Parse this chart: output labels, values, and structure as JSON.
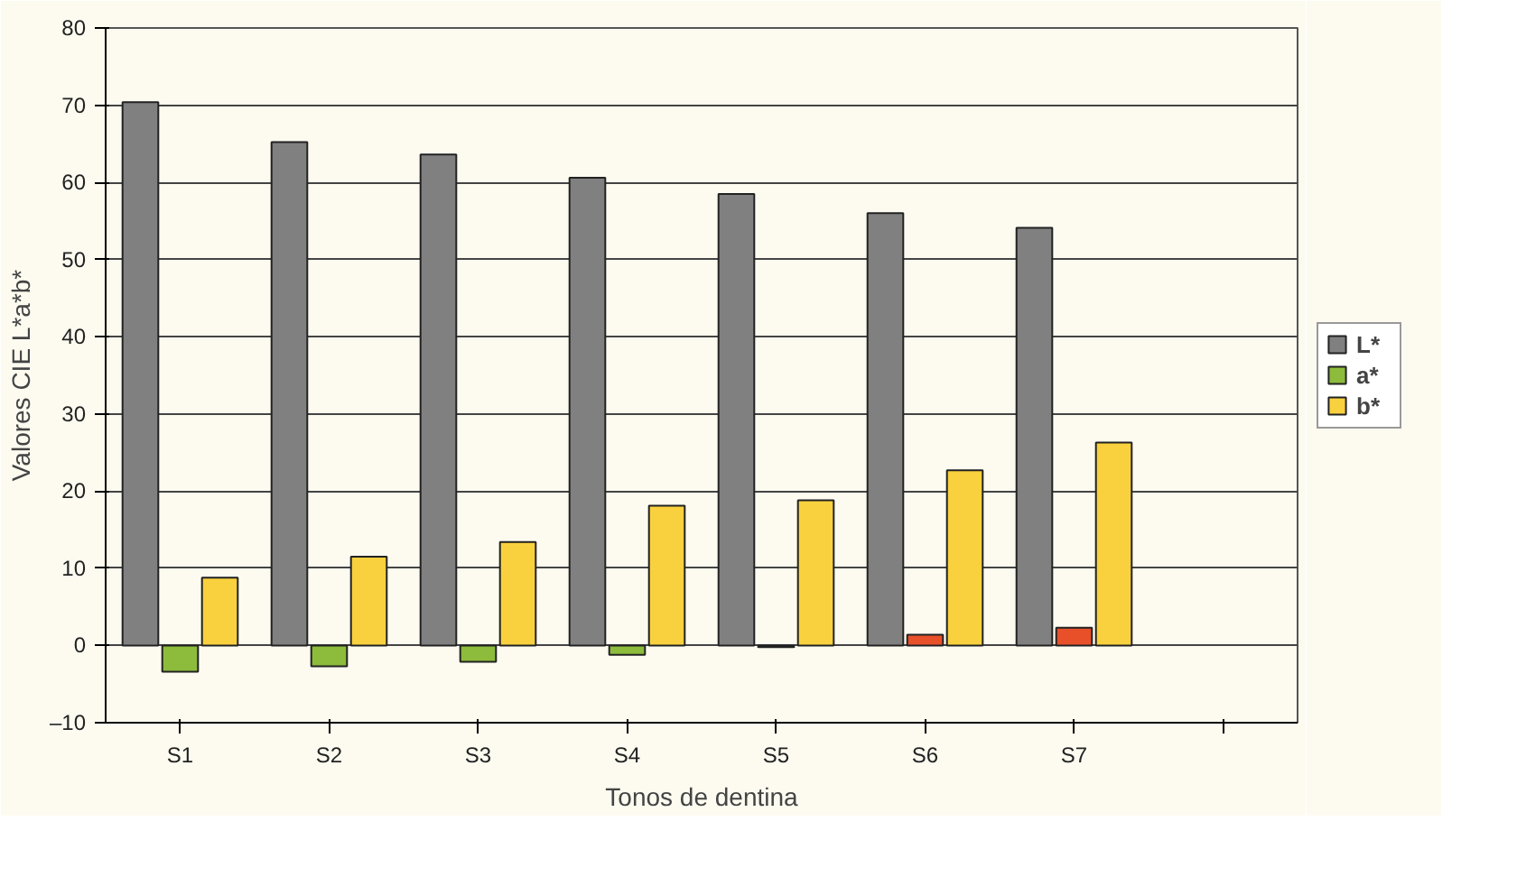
{
  "chart_data": {
    "type": "bar",
    "xlabel": "Tonos de dentina",
    "ylabel": "Valores CIE L*a*b*",
    "categories": [
      "S1",
      "S2",
      "S3",
      "S4",
      "S5",
      "S6",
      "S7",
      null
    ],
    "series": [
      {
        "name": "L*",
        "color": "#808080",
        "values": [
          70.4,
          65.2,
          63.6,
          60.6,
          58.5,
          56.0,
          54.1,
          null
        ]
      },
      {
        "name": "a*",
        "color": "#8dbb3c",
        "colors": [
          "#8dbb3c",
          "#8dbb3c",
          "#8dbb3c",
          "#8dbb3c",
          "#8dbb3c",
          "#e8502a",
          "#e8502a",
          null
        ],
        "values": [
          -3.4,
          -2.7,
          -2.1,
          -1.2,
          -0.2,
          1.4,
          2.3,
          null
        ]
      },
      {
        "name": "b*",
        "color": "#f9d13e",
        "values": [
          8.8,
          11.5,
          13.4,
          18.1,
          18.8,
          22.7,
          26.3,
          null
        ]
      }
    ],
    "ylim": [
      -10,
      80
    ],
    "yticks": [
      {
        "value": -10,
        "label": "–10"
      },
      0,
      10,
      20,
      30,
      40,
      50,
      60,
      70,
      80
    ],
    "grid": "y",
    "legend": "right"
  }
}
